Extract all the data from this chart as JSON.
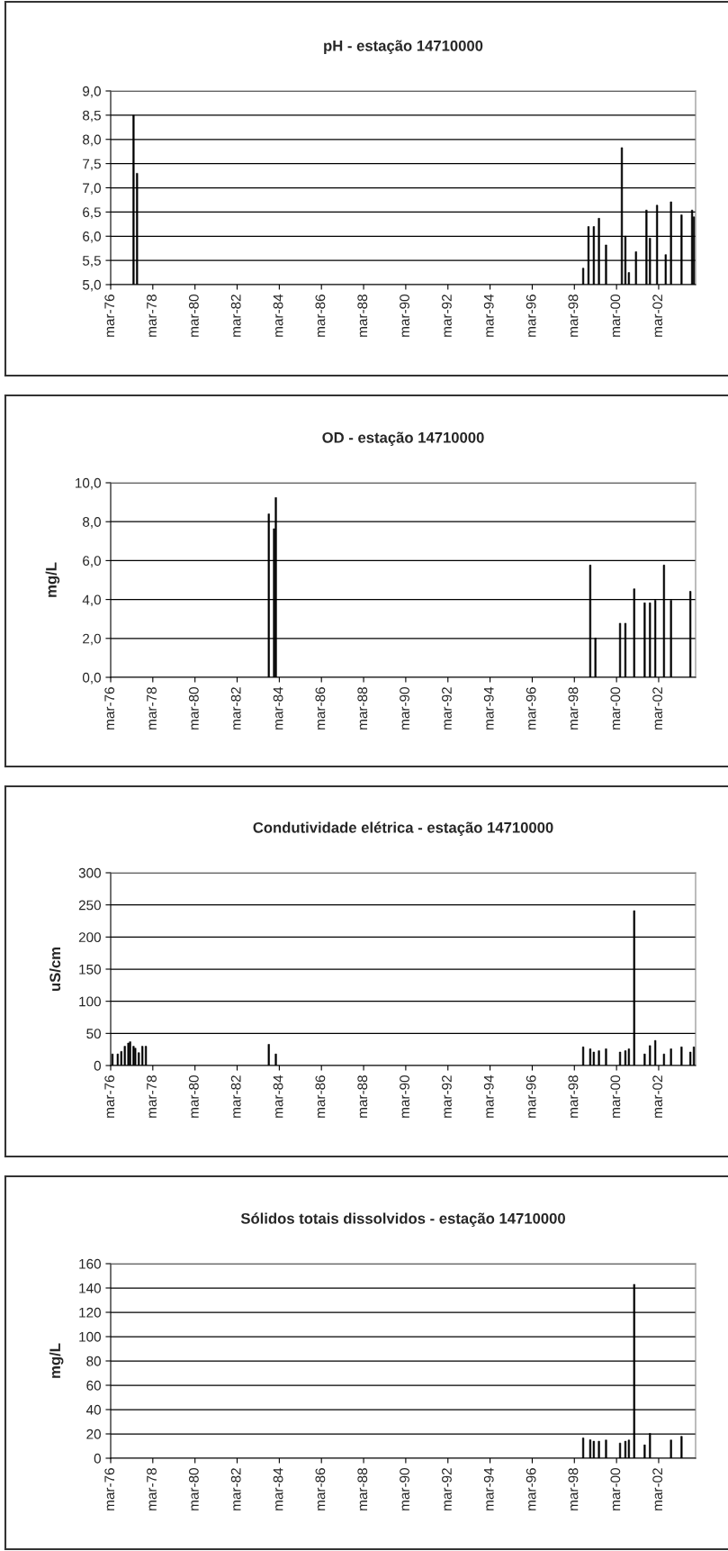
{
  "chart_data": [
    {
      "type": "bar",
      "title": "pH - estação 14710000",
      "color": "#000000",
      "grid": "y",
      "x": [
        "1977-04",
        "1977-06",
        "1998-08",
        "1998-11",
        "1999-02",
        "1999-05",
        "1999-09",
        "2000-06",
        "2000-08",
        "2000-10",
        "2001-02",
        "2001-08",
        "2001-10",
        "2002-02",
        "2002-07",
        "2002-10",
        "2003-04",
        "2003-10",
        "2003-11"
      ],
      "values": [
        8.5,
        7.3,
        5.34,
        6.2,
        6.2,
        6.37,
        5.82,
        7.83,
        6.0,
        5.25,
        5.68,
        6.54,
        5.96,
        6.64,
        5.62,
        6.71,
        6.44,
        6.54,
        6.4
      ],
      "xlim": [
        "1976-03",
        "2003-12"
      ],
      "xticks": [
        {
          "value": "1976-03",
          "label": "mar-76"
        },
        {
          "value": "1978-03",
          "label": "mar-78"
        },
        {
          "value": "1980-03",
          "label": "mar-80"
        },
        {
          "value": "1982-03",
          "label": "mar-82"
        },
        {
          "value": "1984-03",
          "label": "mar-84"
        },
        {
          "value": "1986-03",
          "label": "mar-86"
        },
        {
          "value": "1988-03",
          "label": "mar-88"
        },
        {
          "value": "1990-03",
          "label": "mar-90"
        },
        {
          "value": "1992-03",
          "label": "mar-92"
        },
        {
          "value": "1994-03",
          "label": "mar-94"
        },
        {
          "value": "1996-03",
          "label": "mar-96"
        },
        {
          "value": "1998-03",
          "label": "mar-98"
        },
        {
          "value": "2000-03",
          "label": "mar-00"
        },
        {
          "value": "2002-03",
          "label": "mar-02"
        }
      ],
      "ylim": [
        5.0,
        9.0
      ],
      "yticks": [
        {
          "value": 5.0,
          "label": "5,0"
        },
        {
          "value": 5.5,
          "label": "5,5"
        },
        {
          "value": 6.0,
          "label": "6,0"
        },
        {
          "value": 6.5,
          "label": "6,5"
        },
        {
          "value": 7.0,
          "label": "7,0"
        },
        {
          "value": 7.5,
          "label": "7,5"
        },
        {
          "value": 8.0,
          "label": "8,0"
        },
        {
          "value": 8.5,
          "label": "8,5"
        },
        {
          "value": 9.0,
          "label": "9,0"
        }
      ]
    },
    {
      "type": "bar",
      "title": "OD - estação 14710000",
      "ylabel": "mg/L",
      "color": "#000000",
      "grid": "y",
      "x": [
        "1983-09",
        "1983-12",
        "1984-01",
        "1998-12",
        "1999-03",
        "2000-05",
        "2000-08",
        "2001-01",
        "2001-07",
        "2001-10",
        "2002-01",
        "2002-06",
        "2002-10",
        "2003-09"
      ],
      "values": [
        8.4,
        7.64,
        9.24,
        5.77,
        2.02,
        2.78,
        2.78,
        4.55,
        3.83,
        3.83,
        3.96,
        5.77,
        3.96,
        4.42
      ],
      "xlim": [
        "1976-03",
        "2003-12"
      ],
      "xticks": [
        {
          "value": "1976-03",
          "label": "mar-76"
        },
        {
          "value": "1978-03",
          "label": "mar-78"
        },
        {
          "value": "1980-03",
          "label": "mar-80"
        },
        {
          "value": "1982-03",
          "label": "mar-82"
        },
        {
          "value": "1984-03",
          "label": "mar-84"
        },
        {
          "value": "1986-03",
          "label": "mar-86"
        },
        {
          "value": "1988-03",
          "label": "mar-88"
        },
        {
          "value": "1990-03",
          "label": "mar-90"
        },
        {
          "value": "1992-03",
          "label": "mar-92"
        },
        {
          "value": "1994-03",
          "label": "mar-94"
        },
        {
          "value": "1996-03",
          "label": "mar-96"
        },
        {
          "value": "1998-03",
          "label": "mar-98"
        },
        {
          "value": "2000-03",
          "label": "mar-00"
        },
        {
          "value": "2002-03",
          "label": "mar-02"
        }
      ],
      "ylim": [
        0,
        10.0
      ],
      "yticks": [
        {
          "value": 0,
          "label": "0,0"
        },
        {
          "value": 2,
          "label": "2,0"
        },
        {
          "value": 4,
          "label": "4,0"
        },
        {
          "value": 6,
          "label": "6,0"
        },
        {
          "value": 8,
          "label": "8,0"
        },
        {
          "value": 10,
          "label": "10,0"
        }
      ]
    },
    {
      "type": "bar",
      "title": "Condutividade elétrica - estação 14710000",
      "ylabel": "uS/cm",
      "color": "#000000",
      "grid": "y",
      "x": [
        "1976-04",
        "1976-07",
        "1976-09",
        "1976-11",
        "1977-01",
        "1977-02",
        "1977-04",
        "1977-05",
        "1977-07",
        "1977-09",
        "1977-11",
        "1983-09",
        "1984-01",
        "1998-08",
        "1998-12",
        "1999-02",
        "1999-05",
        "1999-09",
        "2000-05",
        "2000-08",
        "2000-10",
        "2001-01",
        "2001-07",
        "2001-10",
        "2002-01",
        "2002-06",
        "2002-10",
        "2003-04",
        "2003-09",
        "2003-11"
      ],
      "values": [
        18,
        18,
        22,
        30,
        35,
        37,
        30,
        27,
        20,
        30,
        30,
        33,
        18,
        29,
        26,
        21,
        23,
        26,
        21,
        23,
        26,
        241,
        18,
        31,
        39,
        18,
        26,
        29,
        21,
        29
      ],
      "xlim": [
        "1976-03",
        "2003-12"
      ],
      "xticks": [
        {
          "value": "1976-03",
          "label": "mar-76"
        },
        {
          "value": "1978-03",
          "label": "mar-78"
        },
        {
          "value": "1980-03",
          "label": "mar-80"
        },
        {
          "value": "1982-03",
          "label": "mar-82"
        },
        {
          "value": "1984-03",
          "label": "mar-84"
        },
        {
          "value": "1986-03",
          "label": "mar-86"
        },
        {
          "value": "1988-03",
          "label": "mar-88"
        },
        {
          "value": "1990-03",
          "label": "mar-90"
        },
        {
          "value": "1992-03",
          "label": "mar-92"
        },
        {
          "value": "1994-03",
          "label": "mar-94"
        },
        {
          "value": "1996-03",
          "label": "mar-96"
        },
        {
          "value": "1998-03",
          "label": "mar-98"
        },
        {
          "value": "2000-03",
          "label": "mar-00"
        },
        {
          "value": "2002-03",
          "label": "mar-02"
        }
      ],
      "ylim": [
        0,
        300
      ],
      "yticks": [
        0,
        50,
        100,
        150,
        200,
        250,
        300
      ]
    },
    {
      "type": "bar",
      "title": "Sólidos totais dissolvidos - estação 14710000",
      "ylabel": "mg/L",
      "color": "#000000",
      "grid": "y",
      "x": [
        "1998-08",
        "1998-12",
        "1999-02",
        "1999-05",
        "1999-09",
        "2000-05",
        "2000-08",
        "2000-10",
        "2001-01",
        "2001-07",
        "2001-10",
        "2002-10",
        "2003-04"
      ],
      "values": [
        16.7,
        15.2,
        14,
        14,
        15,
        12.5,
        14,
        15,
        143,
        11,
        20.4,
        15,
        18
      ],
      "xlim": [
        "1976-03",
        "2003-12"
      ],
      "xticks": [
        {
          "value": "1976-03",
          "label": "mar-76"
        },
        {
          "value": "1978-03",
          "label": "mar-78"
        },
        {
          "value": "1980-03",
          "label": "mar-80"
        },
        {
          "value": "1982-03",
          "label": "mar-82"
        },
        {
          "value": "1984-03",
          "label": "mar-84"
        },
        {
          "value": "1986-03",
          "label": "mar-86"
        },
        {
          "value": "1988-03",
          "label": "mar-88"
        },
        {
          "value": "1990-03",
          "label": "mar-90"
        },
        {
          "value": "1992-03",
          "label": "mar-92"
        },
        {
          "value": "1994-03",
          "label": "mar-94"
        },
        {
          "value": "1996-03",
          "label": "mar-96"
        },
        {
          "value": "1998-03",
          "label": "mar-98"
        },
        {
          "value": "2000-03",
          "label": "mar-00"
        },
        {
          "value": "2002-03",
          "label": "mar-02"
        }
      ],
      "ylim": [
        0,
        160
      ],
      "yticks": [
        0,
        20,
        40,
        60,
        80,
        100,
        120,
        140,
        160
      ]
    }
  ]
}
